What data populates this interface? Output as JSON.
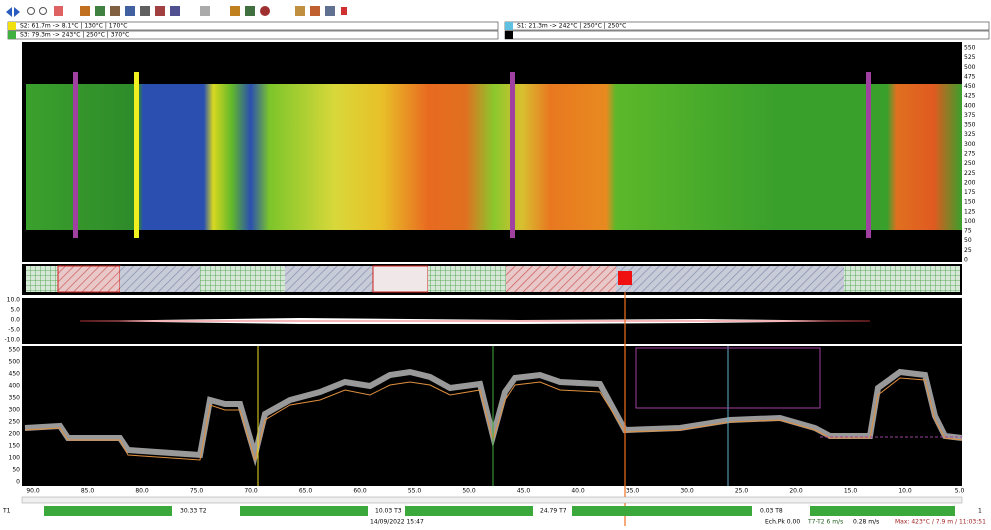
{
  "sensors": [
    "S2: 61.7m -> 8.1°C | 130°C | 170°C",
    "S3: 79.3m -> 243°C | 250°C | 370°C",
    "S1: 21.3m -> 242°C | 250°C | 250°C"
  ],
  "scale_labels": [
    "550",
    "525",
    "500",
    "475",
    "450",
    "425",
    "400",
    "375",
    "350",
    "325",
    "300",
    "275",
    "250",
    "225",
    "200",
    "175",
    "150",
    "125",
    "100",
    "75",
    "50",
    "25",
    "0"
  ],
  "profile_labels": [
    "10.0",
    "5.0",
    "0.0",
    "-5.0",
    "-10.0"
  ],
  "chart_y_labels": [
    "550",
    "500",
    "450",
    "400",
    "350",
    "300",
    "250",
    "200",
    "150",
    "100",
    "50",
    "0"
  ],
  "x_labels": [
    "90.0",
    "85.0",
    "80.0",
    "75.0",
    "70.0",
    "65.0",
    "60.0",
    "55.0",
    "50.0",
    "45.0",
    "40.0",
    "35.0",
    "30.0",
    "25.0",
    "20.0",
    "15.0",
    "10.0",
    "5.0"
  ],
  "status": {
    "t1": "T1",
    "t2": "30.33 T2",
    "t3": "10.03 T3",
    "t7": "24.79 T7",
    "t8": "0.03 T8",
    "end": "1",
    "date": "14/09/2022 15:47",
    "info1": "Ech.Pk 0.00",
    "info2": "T7-T2 6 m/s",
    "info3": "0.28 m/s",
    "info4": "Max: 423°C / 7.9 m / 11:03:51"
  }
}
